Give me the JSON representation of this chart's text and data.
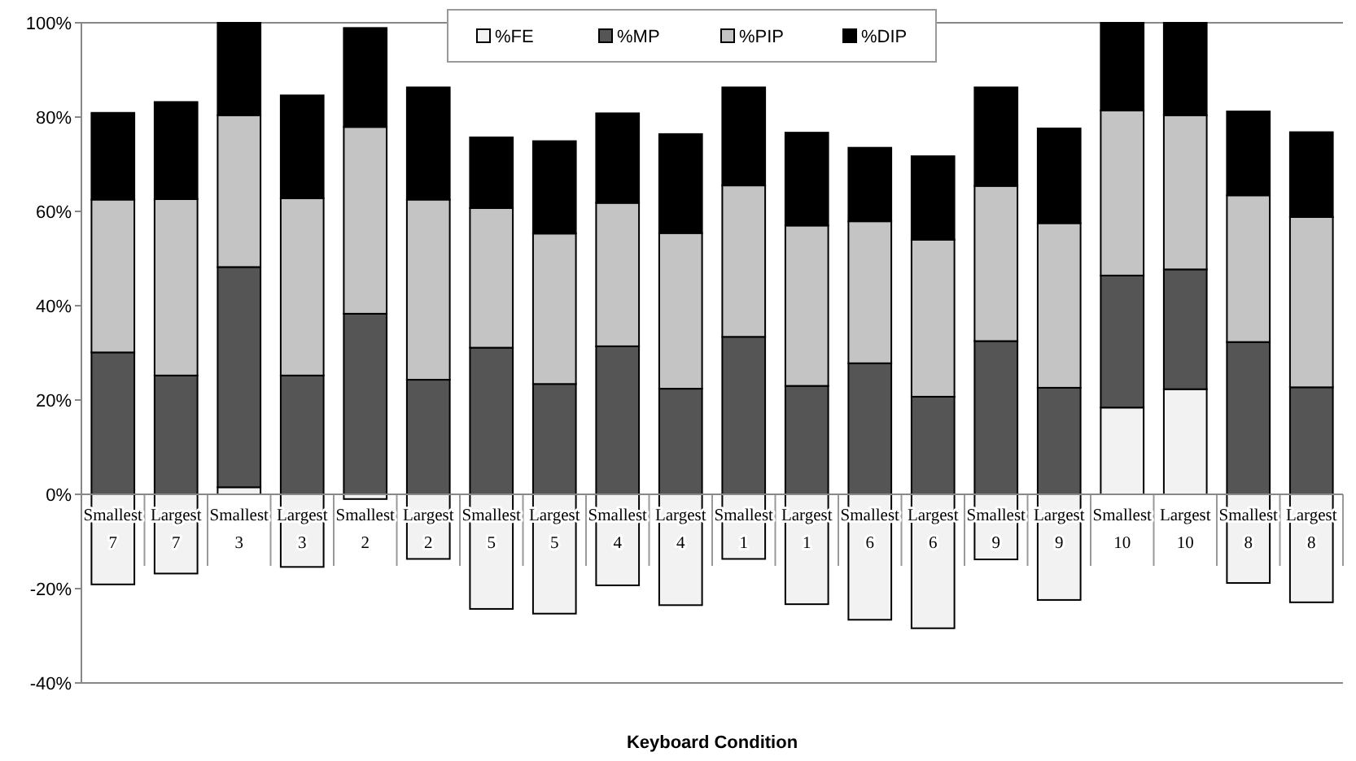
{
  "chart_data": {
    "type": "bar",
    "stacked": true,
    "xlabel": "Keyboard Condition",
    "categories": [
      "Smallest\n7",
      "Largest\n7",
      "Smallest\n3",
      "Largest\n3",
      "Smallest\n2",
      "Largest\n2",
      "Smallest\n5",
      "Largest\n5",
      "Smallest\n4",
      "Largest\n4",
      "Smallest\n1",
      "Largest\n1",
      "Smallest\n6",
      "Largest\n6",
      "Smallest\n9",
      "Largest\n9",
      "Smallest\n10",
      "Largest\n10",
      "Smallest\n8",
      "Largest\n8"
    ],
    "series": [
      {
        "name": "%FE",
        "color": "#f2f2f2",
        "values": [
          -19.1,
          -16.8,
          1.5,
          -15.4,
          -1,
          -13.7,
          -24.3,
          -25.3,
          -19.3,
          -23.5,
          -13.7,
          -23.3,
          -26.6,
          -28.4,
          -13.8,
          -22.4,
          18.4,
          22.3,
          -18.8,
          -22.9
        ]
      },
      {
        "name": "%MP",
        "color": "#555555",
        "values": [
          30.1,
          25.2,
          46.7,
          25.2,
          38.3,
          24.3,
          31.1,
          23.4,
          31.4,
          22.4,
          33.4,
          23,
          27.8,
          20.7,
          32.5,
          22.6,
          28,
          25.4,
          32.3,
          22.7
        ]
      },
      {
        "name": "%PIP",
        "color": "#c4c4c4",
        "values": [
          32.4,
          37.4,
          32.2,
          37.6,
          39.6,
          38.2,
          29.6,
          31.9,
          30.4,
          33,
          32.1,
          34,
          30.1,
          33.3,
          32.9,
          34.9,
          35,
          32.7,
          31.1,
          36.1
        ]
      },
      {
        "name": "%DIP",
        "color": "#000000",
        "values": [
          18.4,
          20.6,
          19.6,
          21.8,
          21,
          23.8,
          15,
          19.6,
          19,
          21,
          20.8,
          19.7,
          15.6,
          17.7,
          20.9,
          20.1,
          18.6,
          19.6,
          17.8,
          18
        ]
      }
    ],
    "ylim": [
      -40,
      100
    ],
    "yticks": [
      {
        "value": -40,
        "label": "-40%"
      },
      {
        "value": -20,
        "label": "-20%"
      },
      {
        "value": 0,
        "label": "0%"
      },
      {
        "value": 20,
        "label": "20%"
      },
      {
        "value": 40,
        "label": "40%"
      },
      {
        "value": 60,
        "label": "60%"
      },
      {
        "value": 80,
        "label": "80%"
      },
      {
        "value": 100,
        "label": "100%"
      }
    ],
    "legend": "top"
  }
}
